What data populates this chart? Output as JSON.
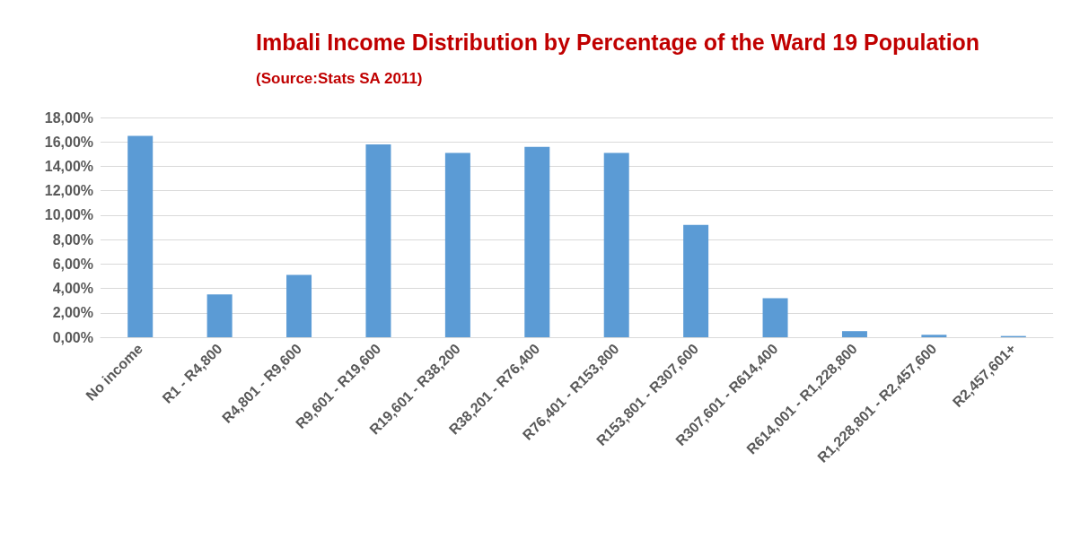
{
  "chart_data": {
    "type": "bar",
    "title": "Imbali Income Distribution by Percentage of the Ward 19 Population",
    "annotations": [
      "(Source:Stats SA 2011)"
    ],
    "categories": [
      "No income",
      "R1 - R4,800",
      "R4,801 - R9,600",
      "R9,601 - R19,600",
      "R19,601 - R38,200",
      "R38,201 - R76,400",
      "R76,401 - R153,800",
      "R153,801 - R307,600",
      "R307,601 - R614,400",
      "R614,001 - R1,228,800",
      "R1,228,801 - R2,457,600",
      "R2,457,601+"
    ],
    "values": [
      16.5,
      3.5,
      5.1,
      15.8,
      15.1,
      15.6,
      15.1,
      9.2,
      3.2,
      0.5,
      0.2,
      0.1
    ],
    "color": "#5b9bd5",
    "ylim": [
      0,
      18
    ],
    "yticks": [
      {
        "value": 0,
        "label": "0,00%"
      },
      {
        "value": 2,
        "label": "2,00%"
      },
      {
        "value": 4,
        "label": "4,00%"
      },
      {
        "value": 6,
        "label": "6,00%"
      },
      {
        "value": 8,
        "label": "8,00%"
      },
      {
        "value": 10,
        "label": "10,00%"
      },
      {
        "value": 12,
        "label": "12,00%"
      },
      {
        "value": 14,
        "label": "14,00%"
      },
      {
        "value": 16,
        "label": "16,00%"
      },
      {
        "value": 18,
        "label": "18,00%"
      }
    ],
    "grid": "y"
  }
}
